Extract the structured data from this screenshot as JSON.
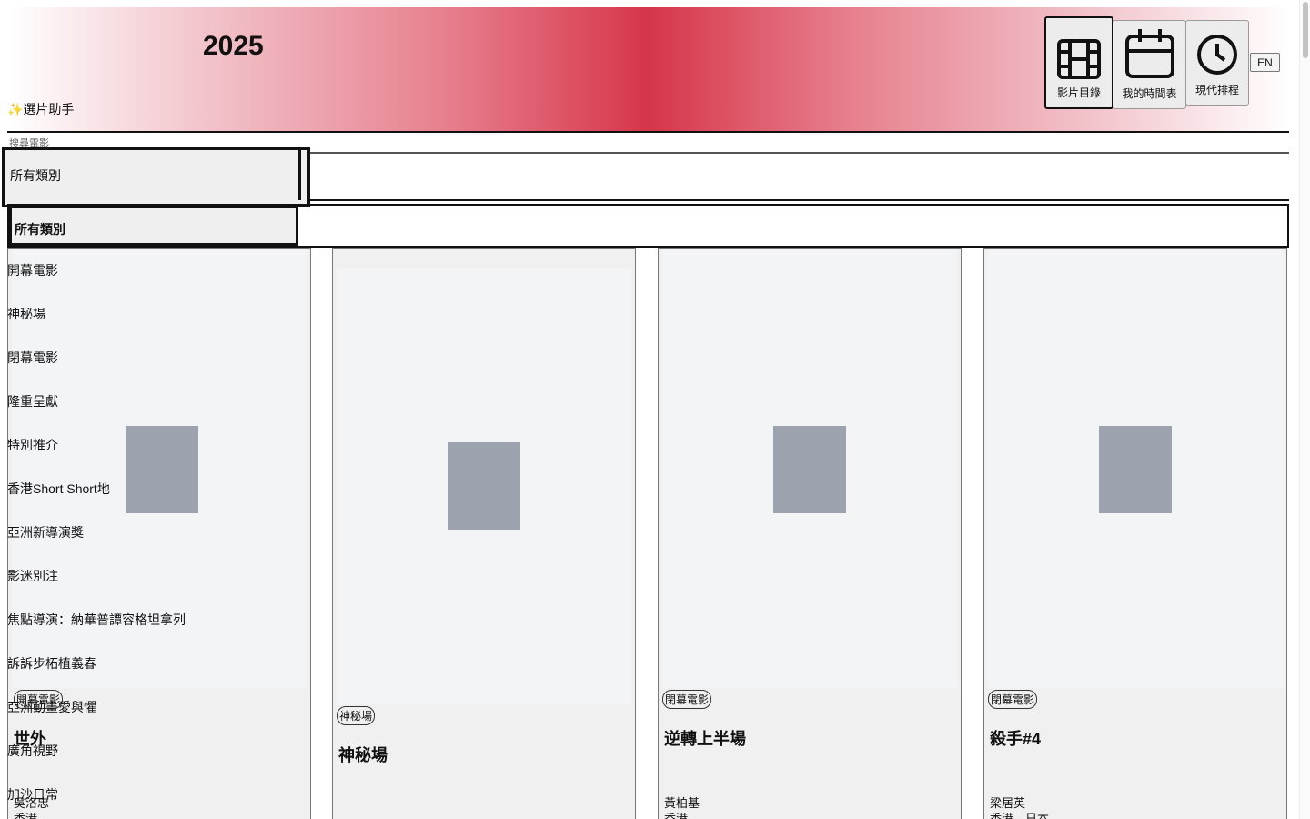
{
  "header": {
    "year": "2025",
    "assistant_icon": "✨",
    "assistant_label": "選片助手",
    "nav": [
      {
        "label": "影片目錄",
        "icon": "film-icon",
        "active": true
      },
      {
        "label": "我的時間表",
        "icon": "calendar-icon",
        "active": false
      },
      {
        "label": "現代排程",
        "icon": "clock-icon",
        "active": false
      }
    ],
    "lang": "EN",
    "gradient_accent": "#d63649"
  },
  "search": {
    "placeholder": "搜尋電影"
  },
  "category_filter": {
    "value": "所有類別",
    "open_value": "所有類別",
    "options": [
      "開幕電影",
      "神秘場",
      "閉幕電影",
      "隆重呈獻",
      "特別推介",
      "香港Short Short地",
      "亞洲新導演獎",
      "影迷別注",
      "焦點導演：納華普譚容格坦拿列",
      "訴訴步柘植義春",
      "亞洲動畫愛與懼",
      "廣角視野",
      "加沙日常"
    ]
  },
  "movies": [
    {
      "category": "開幕電影",
      "title": "世外",
      "director": "吳洛忠",
      "region": "香港"
    },
    {
      "category": "神秘場",
      "title": "神秘場",
      "director": "",
      "region": ""
    },
    {
      "category": "閉幕電影",
      "title": "逆轉上半場",
      "director": "黃柏基",
      "region": "香港"
    },
    {
      "category": "閉幕電影",
      "title": "殺手#4",
      "director": "梁居英",
      "region": "香港、日本"
    }
  ],
  "colors": {
    "poster_placeholder": "#9ca3af",
    "card_bg": "#f0f0f0"
  }
}
